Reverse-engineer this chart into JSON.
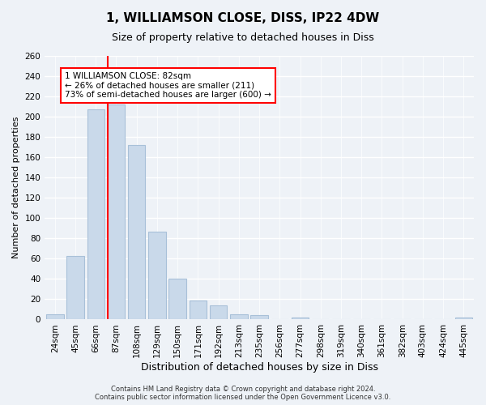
{
  "title": "1, WILLIAMSON CLOSE, DISS, IP22 4DW",
  "subtitle": "Size of property relative to detached houses in Diss",
  "xlabel": "Distribution of detached houses by size in Diss",
  "ylabel": "Number of detached properties",
  "bar_labels": [
    "24sqm",
    "45sqm",
    "66sqm",
    "87sqm",
    "108sqm",
    "129sqm",
    "150sqm",
    "171sqm",
    "192sqm",
    "213sqm",
    "235sqm",
    "256sqm",
    "277sqm",
    "298sqm",
    "319sqm",
    "340sqm",
    "361sqm",
    "382sqm",
    "403sqm",
    "424sqm",
    "445sqm"
  ],
  "bar_values": [
    5,
    63,
    207,
    212,
    172,
    87,
    40,
    19,
    14,
    5,
    4,
    0,
    2,
    0,
    0,
    0,
    0,
    0,
    0,
    0,
    2
  ],
  "bar_color": "#c9d9ea",
  "bar_edge_color": "#a8c0d8",
  "vline_color": "red",
  "vline_x_bar_index": 3,
  "annotation_title": "1 WILLIAMSON CLOSE: 82sqm",
  "annotation_line1": "← 26% of detached houses are smaller (211)",
  "annotation_line2": "73% of semi-detached houses are larger (600) →",
  "annotation_box_color": "red",
  "annotation_box_facecolor": "white",
  "ylim": [
    0,
    260
  ],
  "yticks": [
    0,
    20,
    40,
    60,
    80,
    100,
    120,
    140,
    160,
    180,
    200,
    220,
    240,
    260
  ],
  "footer1": "Contains HM Land Registry data © Crown copyright and database right 2024.",
  "footer2": "Contains public sector information licensed under the Open Government Licence v3.0.",
  "bg_color": "#eef2f7",
  "grid_color": "white",
  "title_fontsize": 11,
  "subtitle_fontsize": 9,
  "xlabel_fontsize": 9,
  "ylabel_fontsize": 8,
  "tick_fontsize": 7.5,
  "footer_fontsize": 6,
  "annotation_fontsize": 7.5
}
